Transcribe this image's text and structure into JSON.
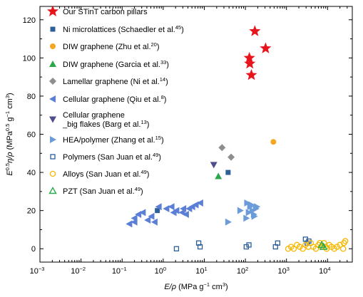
{
  "chart_data": {
    "type": "scatter",
    "x_scale": "log",
    "x_ticks": [
      {
        "value": 0.001,
        "base": "10",
        "exp": "−3"
      },
      {
        "value": 0.01,
        "base": "10",
        "exp": "−2"
      },
      {
        "value": 0.1,
        "base": "10",
        "exp": "−1"
      },
      {
        "value": 1,
        "base": "10",
        "exp": "0"
      },
      {
        "value": 10,
        "base": "10",
        "exp": "1"
      },
      {
        "value": 100,
        "base": "10",
        "exp": "2"
      },
      {
        "value": 1000,
        "base": "10",
        "exp": "3"
      },
      {
        "value": 10000,
        "base": "10",
        "exp": "4"
      }
    ],
    "xlim": [
      0.001,
      40000
    ],
    "ylim": [
      -7,
      127
    ],
    "y_ticks": [
      0,
      20,
      40,
      60,
      80,
      100,
      120
    ],
    "xlabel": {
      "main": "E/ρ",
      "unit_open": "(MPa g",
      "sup1": "−1",
      "unit_mid": " cm",
      "sup2": "3",
      "unit_close": ")"
    },
    "ylabel": {
      "main": "E",
      "sup1": "0.5",
      "mid": "η/ρ",
      "unit_open": "(MPa",
      "sup2": "0.5",
      "unit_mid": " g",
      "sup3": "−1",
      "unit_mid2": " cm",
      "sup4": "3",
      "unit_close": ")"
    },
    "legend_position": "top-left",
    "series": [
      {
        "key": "stint",
        "label": "Our STinT carbon pillars",
        "ref": "",
        "marker": "star",
        "color": "#e8141c",
        "points": [
          [
            170,
            114
          ],
          [
            310,
            105
          ],
          [
            125,
            100
          ],
          [
            128,
            97
          ],
          [
            140,
            91
          ]
        ]
      },
      {
        "key": "ni",
        "label": "Ni microlattices (Schaedler et al.",
        "ref": "45",
        "marker": "square",
        "color": "#2d5f99",
        "points": [
          [
            0.72,
            20
          ],
          [
            38,
            40
          ]
        ]
      },
      {
        "key": "diw_zhu",
        "label": "DIW graphene (Zhu et al.",
        "ref": "20",
        "marker": "circle",
        "color": "#f5a623",
        "points": [
          [
            480,
            56
          ]
        ]
      },
      {
        "key": "diw_garcia",
        "label": "DIW graphene (Garcia et al.",
        "ref": "33",
        "marker": "triangle-up",
        "color": "#2ba84a",
        "points": [
          [
            22,
            38
          ]
        ]
      },
      {
        "key": "lamellar",
        "label": "Lamellar graphene (Ni et al.",
        "ref": "14",
        "marker": "diamond",
        "color": "#8e8e8e",
        "points": [
          [
            27,
            53
          ],
          [
            45,
            48
          ]
        ]
      },
      {
        "key": "cellular_qiu",
        "label": "Cellular graphene (Qiu et al.",
        "ref": "8",
        "marker": "triangle-left",
        "color": "#5b7fd6",
        "points": [
          [
            0.15,
            13
          ],
          [
            0.2,
            14
          ],
          [
            0.2,
            16
          ],
          [
            0.25,
            18
          ],
          [
            0.32,
            19
          ],
          [
            0.42,
            15
          ],
          [
            0.52,
            17
          ],
          [
            0.62,
            14
          ],
          [
            0.78,
            22
          ],
          [
            1.2,
            21
          ],
          [
            1.6,
            22
          ],
          [
            2.1,
            20
          ],
          [
            2.9,
            19
          ],
          [
            3.6,
            18
          ],
          [
            4.3,
            21
          ],
          [
            5.1,
            22
          ],
          [
            6.2,
            23
          ],
          [
            8.0,
            24
          ],
          [
            3.1,
            21
          ],
          [
            1.8,
            19
          ]
        ]
      },
      {
        "key": "cellular_barg",
        "label": "Cellular graphene",
        "label2": "_big flakes (Barg et al.",
        "ref": "13",
        "marker": "triangle-down",
        "color": "#4e4e8c",
        "points": [
          [
            17,
            44
          ]
        ]
      },
      {
        "key": "hea",
        "label": "HEA/polymer (Zhang et al.",
        "ref": "15",
        "marker": "triangle-right",
        "color": "#6b9bd8",
        "points": [
          [
            38,
            14
          ],
          [
            75,
            20
          ],
          [
            110,
            24
          ],
          [
            130,
            22
          ],
          [
            148,
            20
          ],
          [
            160,
            18
          ],
          [
            180,
            21
          ],
          [
            120,
            19
          ],
          [
            140,
            23
          ],
          [
            165,
            17
          ],
          [
            190,
            22
          ],
          [
            105,
            16
          ]
        ]
      },
      {
        "key": "polymers",
        "label": "Polymers (San Juan et al.",
        "ref": "49",
        "marker": "square-open",
        "color": "#2d5f99",
        "points": [
          [
            2.1,
            0
          ],
          [
            7.3,
            3
          ],
          [
            7.9,
            1
          ],
          [
            105,
            1
          ],
          [
            122,
            2
          ],
          [
            540,
            1
          ],
          [
            610,
            3
          ],
          [
            2900,
            5
          ],
          [
            3200,
            3
          ],
          [
            3500,
            4
          ]
        ]
      },
      {
        "key": "alloys",
        "label": "Alloys (San Juan et al.",
        "ref": "49",
        "marker": "circle-open",
        "color": "#f5b800",
        "points": [
          [
            1100,
            0
          ],
          [
            1300,
            1
          ],
          [
            1500,
            0
          ],
          [
            1800,
            2
          ],
          [
            2100,
            1
          ],
          [
            2500,
            0
          ],
          [
            2900,
            2
          ],
          [
            3400,
            1
          ],
          [
            3900,
            3
          ],
          [
            4500,
            1
          ],
          [
            5200,
            0
          ],
          [
            6000,
            2
          ],
          [
            7000,
            1
          ],
          [
            8200,
            3
          ],
          [
            9500,
            0
          ],
          [
            11000,
            2
          ],
          [
            12500,
            1
          ],
          [
            14500,
            0
          ],
          [
            17000,
            1
          ],
          [
            20000,
            2
          ],
          [
            24000,
            0
          ],
          [
            27000,
            4
          ],
          [
            25000,
            3
          ],
          [
            9000,
            1
          ],
          [
            6500,
            3
          ]
        ]
      },
      {
        "key": "pzt",
        "label": "PZT (San Juan et al.",
        "ref": "49",
        "marker": "triangle-up-open",
        "color": "#2ba84a",
        "points": [
          [
            7200,
            2
          ],
          [
            8000,
            1
          ]
        ]
      }
    ]
  }
}
